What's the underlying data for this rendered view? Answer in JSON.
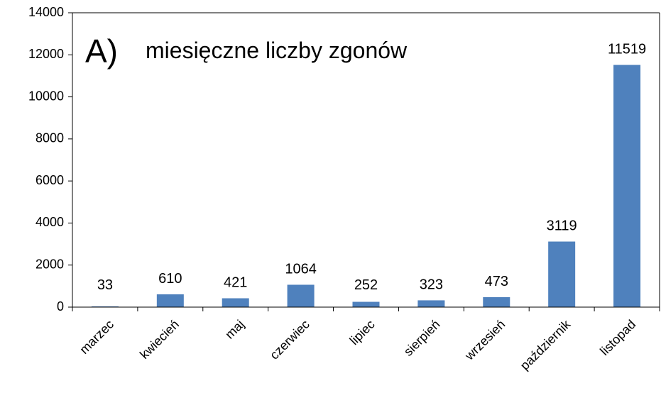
{
  "chart_data": {
    "type": "bar",
    "label": "A)",
    "title": "miesięczne liczby zgonów",
    "categories": [
      "marzec",
      "kwiecień",
      "maj",
      "czerwiec",
      "lipiec",
      "sierpień",
      "wrzesień",
      "październik",
      "listopad"
    ],
    "values": [
      33,
      610,
      421,
      1064,
      252,
      323,
      473,
      3119,
      11519
    ],
    "color": "#4f81bd",
    "ylim": [
      0,
      14000
    ],
    "yticks": [
      0,
      2000,
      4000,
      6000,
      8000,
      10000,
      12000,
      14000
    ],
    "grid": false
  }
}
